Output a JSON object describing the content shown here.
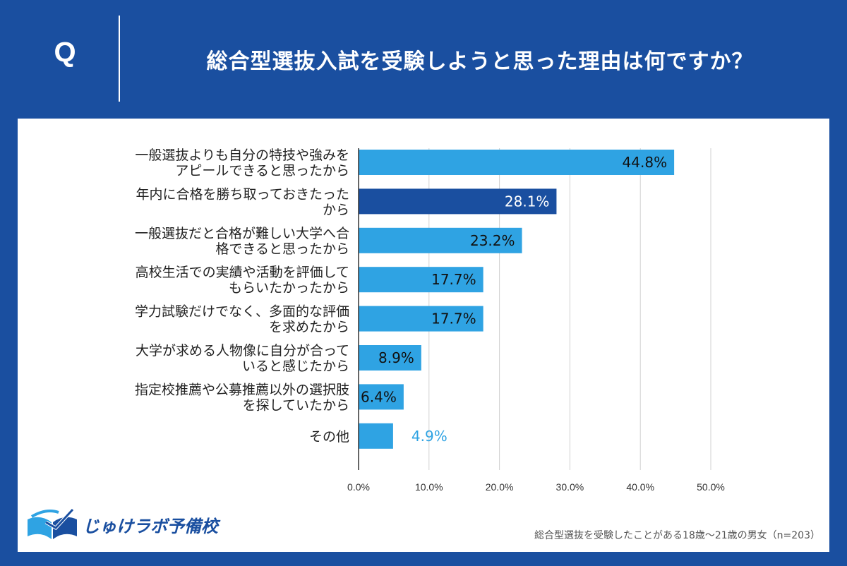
{
  "header": {
    "q_label": "Q",
    "question": "総合型選抜入試を受験しようと思った理由は何ですか？"
  },
  "chart_data": {
    "type": "bar",
    "orientation": "horizontal",
    "categories": [
      [
        "一般選抜よりも自分の特技や強みを",
        "アピールできると思ったから"
      ],
      [
        "年内に合格を勝ち取っておきたった",
        "から"
      ],
      [
        "一般選抜だと合格が難しい大学へ合",
        "格できると思ったから"
      ],
      [
        "高校生活での実績や活動を評価して",
        "もらいたかったから"
      ],
      [
        "学力試験だけでなく、多面的な評価",
        "を求めたから"
      ],
      [
        "大学が求める人物像に自分が合って",
        "いると感じたから"
      ],
      [
        "指定校推薦や公募推薦以外の選択肢",
        "を探していたから"
      ],
      [
        "その他"
      ]
    ],
    "values": [
      44.8,
      28.1,
      23.2,
      17.7,
      17.7,
      8.9,
      6.4,
      4.9
    ],
    "value_labels": [
      "44.8%",
      "28.1%",
      "23.2%",
      "17.7%",
      "17.7%",
      "8.9%",
      "6.4%",
      "4.9%"
    ],
    "highlight_index": 1,
    "xlim": [
      0,
      50
    ],
    "xticks": [
      0,
      10,
      20,
      30,
      40,
      50
    ],
    "xtick_labels": [
      "0.0%",
      "10.0%",
      "20.0%",
      "30.0%",
      "40.0%",
      "50.0%"
    ],
    "grid": true,
    "colors": {
      "bar": "#2fa3e3",
      "highlight": "#1a4fa0",
      "label_inside": "#111111",
      "label_inside_highlight": "#ffffff",
      "label_outside": "#2fa3e3",
      "grid": "#d0d0d0",
      "axis": "#333333"
    }
  },
  "footer": {
    "logo_text": "じゅけラボ予備校",
    "note": "総合型選抜を受験したことがある18歳～21歳の男女（n=203）"
  }
}
